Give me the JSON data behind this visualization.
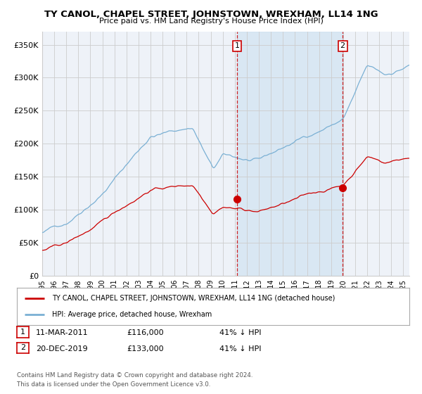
{
  "title": "TY CANOL, CHAPEL STREET, JOHNSTOWN, WREXHAM, LL14 1NG",
  "subtitle": "Price paid vs. HM Land Registry's House Price Index (HPI)",
  "ylim": [
    0,
    370000
  ],
  "yticks": [
    0,
    50000,
    100000,
    150000,
    200000,
    250000,
    300000,
    350000
  ],
  "ytick_labels": [
    "£0",
    "£50K",
    "£100K",
    "£150K",
    "£200K",
    "£250K",
    "£300K",
    "£350K"
  ],
  "hpi_color": "#7ab0d4",
  "property_color": "#cc0000",
  "background_color": "#ffffff",
  "plot_bg_color": "#eef2f8",
  "grid_color": "#cccccc",
  "shade_color": "#cce0f0",
  "dashed_line_color": "#cc0000",
  "t1": 2011.19,
  "t2": 2019.96,
  "p1": 116000,
  "p2": 133000,
  "ann1_label": "1",
  "ann1_date": "11-MAR-2011",
  "ann1_price": "£116,000",
  "ann1_pct": "41% ↓ HPI",
  "ann2_label": "2",
  "ann2_date": "20-DEC-2019",
  "ann2_price": "£133,000",
  "ann2_pct": "41% ↓ HPI",
  "legend_property": "TY CANOL, CHAPEL STREET, JOHNSTOWN, WREXHAM, LL14 1NG (detached house)",
  "legend_hpi": "HPI: Average price, detached house, Wrexham",
  "footer1": "Contains HM Land Registry data © Crown copyright and database right 2024.",
  "footer2": "This data is licensed under the Open Government Licence v3.0."
}
